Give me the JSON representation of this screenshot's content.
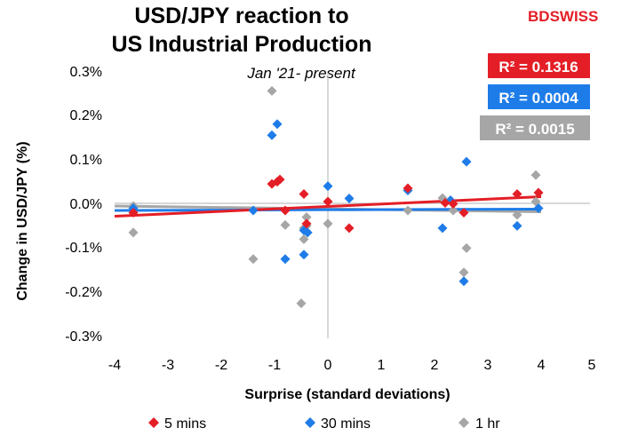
{
  "brand": {
    "prefix": "BD",
    "suffix": "SWISS",
    "prefix_color": "#e41e26",
    "suffix_color": "#e41e26"
  },
  "chart_data": {
    "type": "scatter",
    "title_line1": "USD/JPY reaction to",
    "title_line2": "US Industrial Production",
    "subtitle": "Jan '21- present",
    "xlabel": "Surprise (standard deviations)",
    "ylabel": "Change in USD/JPY  (%)",
    "xlim": [
      -4,
      5
    ],
    "ylim": [
      -0.3,
      0.3
    ],
    "x_ticks": [
      "-4",
      "-3",
      "-2",
      "-1",
      "0",
      "1",
      "2",
      "3",
      "4",
      "5"
    ],
    "y_ticks": [
      "-0.3%",
      "-0.2%",
      "-0.1%",
      "0.0%",
      "0.1%",
      "0.2%",
      "0.3%"
    ],
    "grid": false,
    "legend_position": "bottom",
    "series": [
      {
        "name": "1 hr",
        "color": "#a6a6a6",
        "r2_label": "R² = 0.0015",
        "r2_color": "#a6a6a6",
        "trend": {
          "x": [
            -4,
            4
          ],
          "y": [
            -0.005,
            -0.018
          ]
        },
        "points": [
          [
            -3.65,
            -0.065
          ],
          [
            -3.65,
            -0.005
          ],
          [
            -1.4,
            -0.125
          ],
          [
            -1.05,
            0.255
          ],
          [
            -0.8,
            -0.048
          ],
          [
            -0.5,
            -0.225
          ],
          [
            -0.45,
            -0.08
          ],
          [
            -0.4,
            -0.03
          ],
          [
            -0.4,
            -0.05
          ],
          [
            -0.45,
            -0.055
          ],
          [
            0.0,
            -0.045
          ],
          [
            1.5,
            -0.015
          ],
          [
            2.15,
            0.013
          ],
          [
            2.35,
            -0.015
          ],
          [
            2.55,
            -0.155
          ],
          [
            2.6,
            -0.1
          ],
          [
            3.55,
            -0.025
          ],
          [
            3.9,
            0.065
          ],
          [
            3.9,
            0.005
          ]
        ]
      },
      {
        "name": "30 mins",
        "color": "#1e7ce8",
        "r2_label": "R² = 0.0004",
        "r2_color": "#1e7ce8",
        "trend": {
          "x": [
            -4,
            4
          ],
          "y": [
            -0.015,
            -0.012
          ]
        },
        "points": [
          [
            -3.65,
            -0.01
          ],
          [
            -1.4,
            -0.015
          ],
          [
            -1.05,
            0.155
          ],
          [
            -0.95,
            0.18
          ],
          [
            -0.8,
            -0.125
          ],
          [
            -0.45,
            -0.115
          ],
          [
            -0.45,
            -0.06
          ],
          [
            -0.38,
            -0.065
          ],
          [
            0.0,
            0.04
          ],
          [
            0.4,
            0.012
          ],
          [
            1.5,
            0.03
          ],
          [
            2.15,
            -0.055
          ],
          [
            2.3,
            0.008
          ],
          [
            2.55,
            -0.175
          ],
          [
            2.6,
            0.095
          ],
          [
            3.55,
            -0.05
          ],
          [
            3.95,
            -0.01
          ]
        ]
      },
      {
        "name": "5 mins",
        "color": "#e41e26",
        "r2_label": "R² = 0.1316",
        "r2_color": "#e41e26",
        "trend": {
          "x": [
            -4,
            4
          ],
          "y": [
            -0.028,
            0.016
          ]
        },
        "points": [
          [
            -3.65,
            -0.02
          ],
          [
            -1.05,
            0.045
          ],
          [
            -0.95,
            0.05
          ],
          [
            -0.9,
            0.055
          ],
          [
            -0.8,
            -0.015
          ],
          [
            -0.45,
            0.022
          ],
          [
            -0.4,
            -0.045
          ],
          [
            0.0,
            0.005
          ],
          [
            0.4,
            -0.055
          ],
          [
            1.5,
            0.035
          ],
          [
            2.2,
            0.002
          ],
          [
            2.35,
            0.0
          ],
          [
            2.55,
            -0.02
          ],
          [
            3.55,
            0.022
          ],
          [
            3.95,
            0.025
          ]
        ]
      }
    ]
  }
}
